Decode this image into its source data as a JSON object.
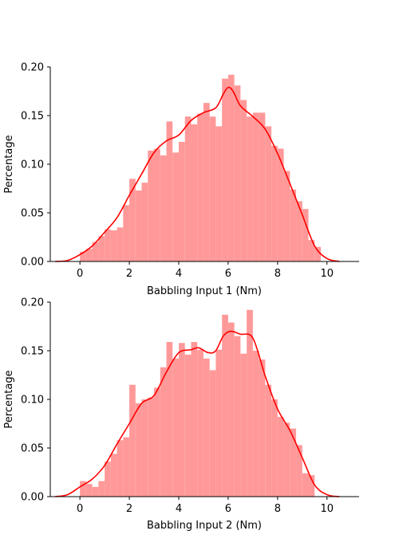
{
  "chart_data": [
    {
      "type": "bar",
      "subtype": "histogram_with_kde",
      "xlabel": "Babbling Input 1 (Nm)",
      "ylabel": "Percentage",
      "xlim": [
        -1.2,
        11.3
      ],
      "ylim": [
        0,
        0.2
      ],
      "xticks": [
        "0",
        "2",
        "4",
        "6",
        "8",
        "10"
      ],
      "yticks": [
        "0.00",
        "0.05",
        "0.10",
        "0.15",
        "0.20"
      ],
      "grid": false,
      "colors": {
        "bars": "#ff9999",
        "kde": "#ff0000"
      },
      "bin_start": 0.0,
      "bin_width": 0.25,
      "values": [
        0.01,
        0.013,
        0.02,
        0.026,
        0.033,
        0.032,
        0.035,
        0.058,
        0.085,
        0.073,
        0.081,
        0.114,
        0.116,
        0.109,
        0.144,
        0.112,
        0.123,
        0.149,
        0.141,
        0.152,
        0.163,
        0.149,
        0.139,
        0.188,
        0.192,
        0.181,
        0.166,
        0.149,
        0.153,
        0.153,
        0.139,
        0.119,
        0.116,
        0.093,
        0.074,
        0.062,
        0.054,
        0.022,
        0.015,
        0.0
      ],
      "kde": {
        "x": [
          -1.0,
          -0.5,
          0.0,
          0.5,
          1.0,
          1.5,
          2.0,
          2.5,
          3.0,
          3.5,
          4.0,
          4.5,
          5.0,
          5.5,
          5.8,
          6.0,
          6.2,
          6.5,
          7.0,
          7.5,
          8.0,
          8.5,
          9.0,
          9.5,
          10.0,
          10.5
        ],
        "y": [
          0.0,
          0.001,
          0.007,
          0.016,
          0.03,
          0.045,
          0.068,
          0.09,
          0.112,
          0.124,
          0.13,
          0.145,
          0.153,
          0.158,
          0.172,
          0.179,
          0.175,
          0.16,
          0.149,
          0.136,
          0.111,
          0.08,
          0.048,
          0.016,
          0.003,
          0.0
        ]
      }
    },
    {
      "type": "bar",
      "subtype": "histogram_with_kde",
      "xlabel": "Babbling Input 2 (Nm)",
      "ylabel": "Percentage",
      "xlim": [
        -1.2,
        11.3
      ],
      "ylim": [
        0,
        0.2
      ],
      "xticks": [
        "0",
        "2",
        "4",
        "6",
        "8",
        "10"
      ],
      "yticks": [
        "0.00",
        "0.05",
        "0.10",
        "0.15",
        "0.20"
      ],
      "grid": false,
      "colors": {
        "bars": "#ff9999",
        "kde": "#ff0000"
      },
      "bin_start": 0.0,
      "bin_width": 0.25,
      "values": [
        0.016,
        0.013,
        0.01,
        0.016,
        0.036,
        0.044,
        0.058,
        0.061,
        0.115,
        0.096,
        0.1,
        0.102,
        0.112,
        0.133,
        0.159,
        0.142,
        0.158,
        0.146,
        0.159,
        0.151,
        0.142,
        0.13,
        0.151,
        0.187,
        0.179,
        0.165,
        0.147,
        0.192,
        0.15,
        0.141,
        0.115,
        0.1,
        0.082,
        0.076,
        0.07,
        0.053,
        0.024,
        0.022,
        0.0,
        0.0
      ],
      "kde": {
        "x": [
          -1.0,
          -0.5,
          0.0,
          0.5,
          1.0,
          1.5,
          2.0,
          2.5,
          3.0,
          3.5,
          4.0,
          4.5,
          4.8,
          5.2,
          5.5,
          5.8,
          6.1,
          6.5,
          7.0,
          7.5,
          8.0,
          8.5,
          9.0,
          9.5,
          10.0,
          10.5
        ],
        "y": [
          0.0,
          0.002,
          0.01,
          0.018,
          0.032,
          0.054,
          0.075,
          0.096,
          0.104,
          0.128,
          0.148,
          0.151,
          0.153,
          0.148,
          0.15,
          0.165,
          0.17,
          0.167,
          0.163,
          0.124,
          0.09,
          0.068,
          0.04,
          0.012,
          0.002,
          0.0
        ]
      }
    }
  ]
}
